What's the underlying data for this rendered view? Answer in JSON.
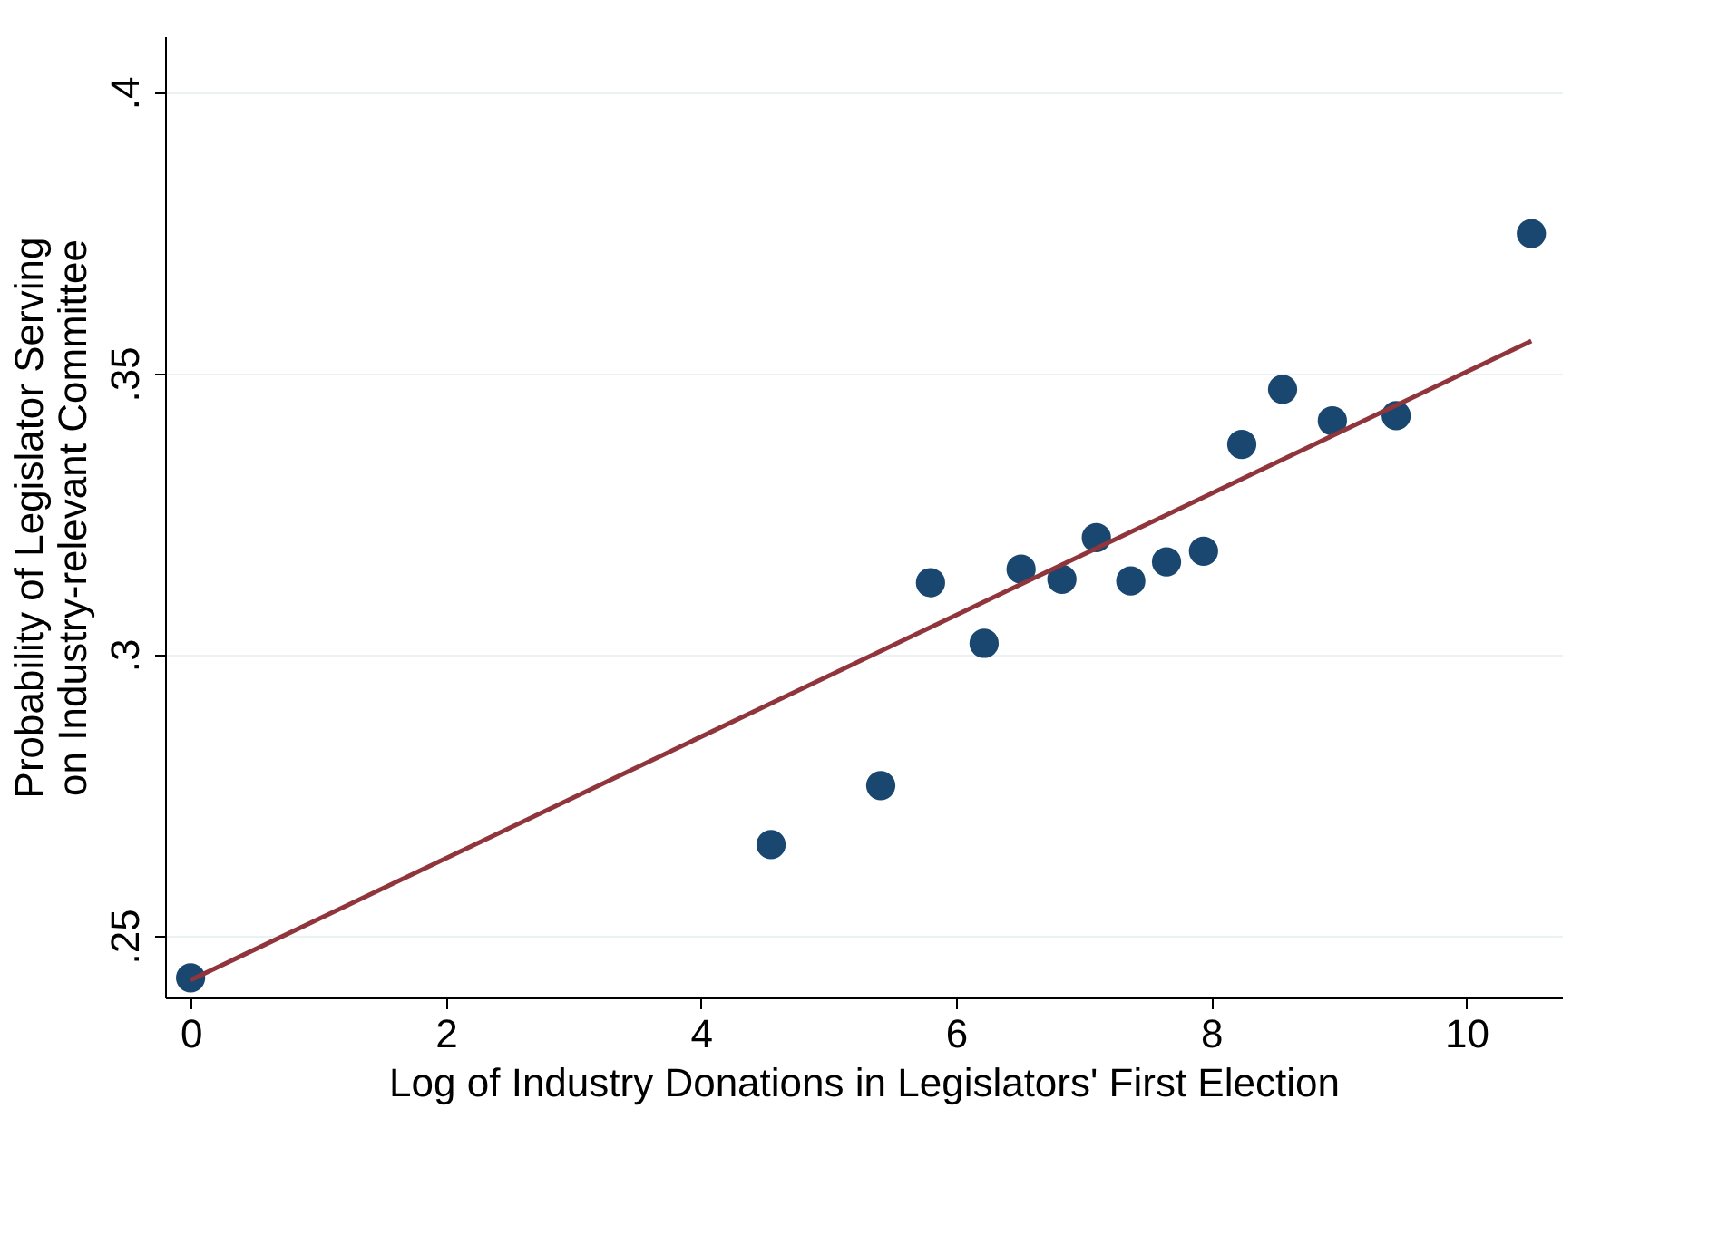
{
  "chart_data": {
    "type": "scatter",
    "xlabel": "Log of Industry Donations in Legislators' First Election",
    "ylabel": "Probability of Legislator Serving\non Industry-relevant Committee",
    "xlim": [
      -0.2,
      10.75
    ],
    "ylim": [
      0.239,
      0.41
    ],
    "xticks": [
      0,
      2,
      4,
      6,
      8,
      10
    ],
    "yticks": [
      {
        "value": 0.25,
        "label": ".25"
      },
      {
        "value": 0.3,
        "label": ".3"
      },
      {
        "value": 0.35,
        "label": ".35"
      },
      {
        "value": 0.4,
        "label": ".4"
      }
    ],
    "grid": "y",
    "series": [
      {
        "marker": "circle",
        "color": "#1a476f",
        "x": [
          0,
          4.55,
          5.41,
          5.8,
          6.22,
          6.51,
          6.83,
          7.1,
          7.37,
          7.65,
          7.94,
          8.24,
          8.56,
          8.95,
          9.45,
          10.51
        ],
        "values": [
          0.2425,
          0.2662,
          0.2767,
          0.3128,
          0.302,
          0.3152,
          0.3134,
          0.3208,
          0.3131,
          0.3165,
          0.3184,
          0.3374,
          0.3472,
          0.3416,
          0.3425,
          0.3749
        ]
      },
      {
        "type": "line",
        "marker": "none",
        "color": "#90353b",
        "x": [
          0,
          10.51
        ],
        "values": [
          0.2421,
          0.3558
        ]
      }
    ]
  }
}
